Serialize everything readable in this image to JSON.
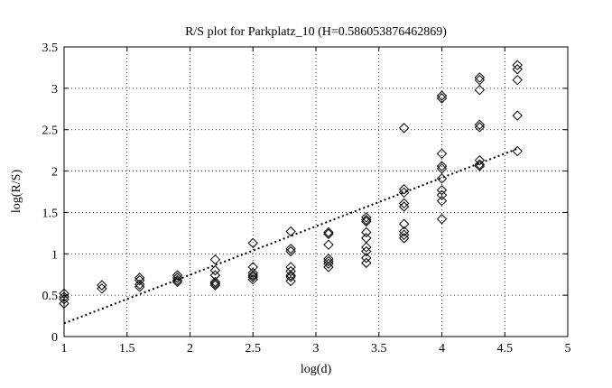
{
  "chart_data": {
    "type": "scatter",
    "title": "R/S plot for Parkplatz_10 (H=0.586053876462869)",
    "xlabel": "log(d)",
    "ylabel": "log(R/S)",
    "xlim": [
      1,
      5
    ],
    "ylim": [
      0,
      3.5
    ],
    "x_ticks": [
      "1",
      "1.5",
      "2",
      "2.5",
      "3",
      "3.5",
      "4",
      "4.5",
      "5"
    ],
    "y_ticks": [
      "0",
      "0.5",
      "1",
      "1.5",
      "2",
      "2.5",
      "3",
      "3.5"
    ],
    "grid": true,
    "grid_style": "dotted",
    "marker": "diamond",
    "series": [
      {
        "points": [
          [
            1.0,
            0.52
          ],
          [
            1.0,
            0.48
          ],
          [
            1.0,
            0.45
          ],
          [
            1.0,
            0.4
          ],
          [
            1.3,
            0.62
          ],
          [
            1.3,
            0.58
          ],
          [
            1.6,
            0.71
          ],
          [
            1.6,
            0.68
          ],
          [
            1.6,
            0.63
          ],
          [
            1.6,
            0.6
          ],
          [
            1.9,
            0.74
          ],
          [
            1.9,
            0.71
          ],
          [
            1.9,
            0.68
          ],
          [
            1.9,
            0.66
          ],
          [
            2.2,
            0.93
          ],
          [
            2.2,
            0.8
          ],
          [
            2.2,
            0.74
          ],
          [
            2.2,
            0.66
          ],
          [
            2.2,
            0.64
          ],
          [
            2.2,
            0.62
          ],
          [
            2.5,
            1.13
          ],
          [
            2.5,
            0.84
          ],
          [
            2.5,
            0.77
          ],
          [
            2.5,
            0.74
          ],
          [
            2.5,
            0.72
          ],
          [
            2.5,
            0.69
          ],
          [
            2.8,
            1.27
          ],
          [
            2.8,
            1.06
          ],
          [
            2.8,
            1.03
          ],
          [
            2.8,
            0.84
          ],
          [
            2.8,
            0.79
          ],
          [
            2.8,
            0.74
          ],
          [
            2.8,
            0.72
          ],
          [
            2.8,
            0.67
          ],
          [
            3.1,
            1.26
          ],
          [
            3.1,
            1.24
          ],
          [
            3.1,
            1.11
          ],
          [
            3.1,
            0.94
          ],
          [
            3.1,
            0.91
          ],
          [
            3.1,
            0.88
          ],
          [
            3.1,
            0.84
          ],
          [
            3.4,
            1.44
          ],
          [
            3.4,
            1.41
          ],
          [
            3.4,
            1.39
          ],
          [
            3.4,
            1.26
          ],
          [
            3.4,
            1.19
          ],
          [
            3.4,
            1.08
          ],
          [
            3.4,
            1.03
          ],
          [
            3.4,
            0.95
          ],
          [
            3.4,
            0.89
          ],
          [
            3.7,
            2.52
          ],
          [
            3.7,
            1.78
          ],
          [
            3.7,
            1.74
          ],
          [
            3.7,
            1.61
          ],
          [
            3.7,
            1.57
          ],
          [
            3.7,
            1.36
          ],
          [
            3.7,
            1.27
          ],
          [
            3.7,
            1.23
          ],
          [
            3.7,
            1.19
          ],
          [
            4.0,
            2.91
          ],
          [
            4.0,
            2.88
          ],
          [
            4.0,
            2.21
          ],
          [
            4.0,
            2.06
          ],
          [
            4.0,
            2.03
          ],
          [
            4.0,
            1.91
          ],
          [
            4.0,
            1.77
          ],
          [
            4.0,
            1.71
          ],
          [
            4.0,
            1.64
          ],
          [
            4.0,
            1.42
          ],
          [
            4.3,
            3.13
          ],
          [
            4.3,
            3.1
          ],
          [
            4.3,
            2.98
          ],
          [
            4.3,
            2.56
          ],
          [
            4.3,
            2.53
          ],
          [
            4.3,
            2.13
          ],
          [
            4.3,
            2.08
          ],
          [
            4.3,
            2.06
          ],
          [
            4.6,
            3.28
          ],
          [
            4.6,
            3.23
          ],
          [
            4.6,
            3.1
          ],
          [
            4.6,
            2.67
          ],
          [
            4.6,
            2.24
          ]
        ]
      }
    ],
    "fit_line": {
      "style": "dotted",
      "x": [
        1.0,
        4.6
      ],
      "y": [
        0.16,
        2.27
      ]
    }
  }
}
